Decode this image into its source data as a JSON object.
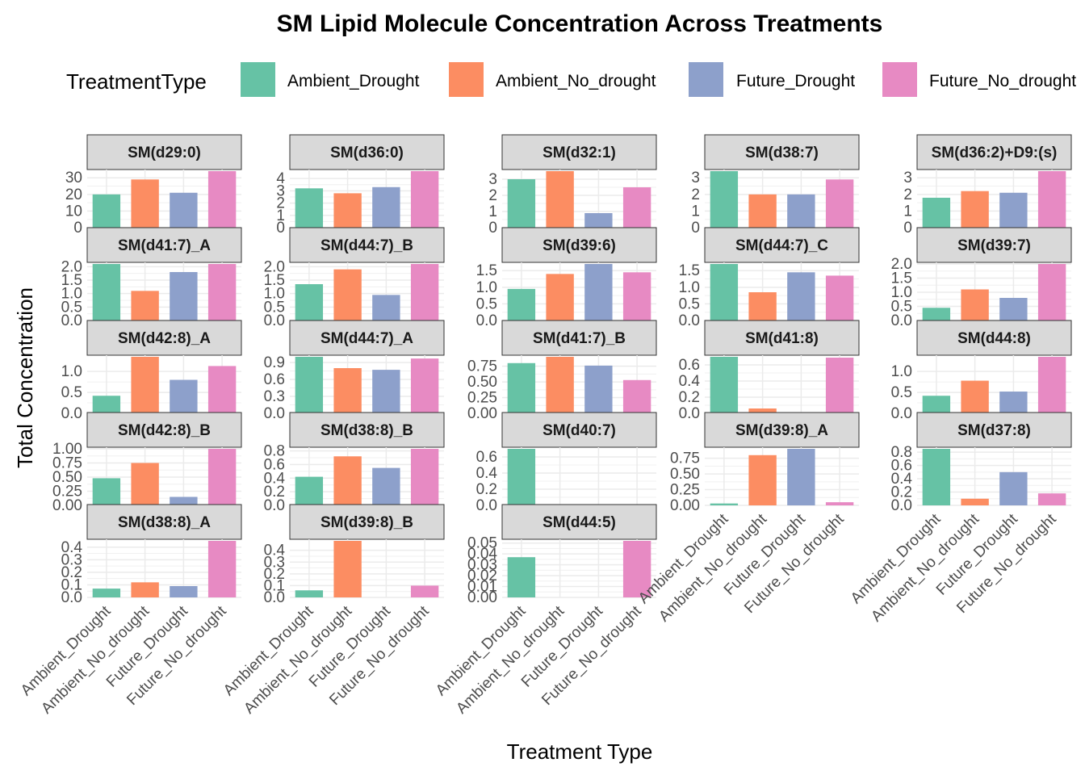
{
  "chart_data": {
    "type": "bar",
    "title": "SM  Lipid Molecule Concentration Across Treatments",
    "xlabel": "Treatment Type",
    "ylabel": "Total Concentration",
    "legend": {
      "title": "TreatmentType",
      "position": "top",
      "entries": [
        "Ambient_Drought",
        "Ambient_No_drought",
        "Future_Drought",
        "Future_No_drought"
      ],
      "colors": [
        "#66C2A5",
        "#FC8D62",
        "#8DA0CB",
        "#E78AC3"
      ]
    },
    "categories": [
      "Ambient_Drought",
      "Ambient_No_drought",
      "Future_Drought",
      "Future_No_drought"
    ],
    "grid": true,
    "facets": [
      {
        "label": "SM(d29:0)",
        "values": [
          20,
          29,
          21,
          34
        ],
        "ticks": [
          "0",
          "10",
          "20",
          "30"
        ],
        "ylim": [
          0,
          34
        ]
      },
      {
        "label": "SM(d36:0)",
        "values": [
          3.2,
          2.8,
          3.3,
          4.6
        ],
        "ticks": [
          "0",
          "1",
          "2",
          "3",
          "4"
        ],
        "ylim": [
          0,
          4.6
        ]
      },
      {
        "label": "SM(d32:1)",
        "values": [
          3.0,
          3.5,
          0.9,
          2.5
        ],
        "ticks": [
          "0",
          "1",
          "2",
          "3"
        ],
        "ylim": [
          0,
          3.5
        ]
      },
      {
        "label": "SM(d38:7)",
        "values": [
          3.4,
          2.0,
          2.0,
          2.9
        ],
        "ticks": [
          "0",
          "1",
          "2",
          "3"
        ],
        "ylim": [
          0,
          3.4
        ]
      },
      {
        "label": "SM(d36:2)+D9:(s)",
        "values": [
          1.8,
          2.2,
          2.1,
          3.4
        ],
        "ticks": [
          "0",
          "1",
          "2",
          "3"
        ],
        "ylim": [
          0,
          3.4
        ]
      },
      {
        "label": "SM(d41:7)_A",
        "values": [
          2.1,
          1.1,
          1.8,
          2.1
        ],
        "ticks": [
          "0.0",
          "0.5",
          "1.0",
          "1.5",
          "2.0"
        ],
        "ylim": [
          0,
          2.1
        ]
      },
      {
        "label": "SM(d44:7)_B",
        "values": [
          1.35,
          1.9,
          0.95,
          2.1
        ],
        "ticks": [
          "0.0",
          "0.5",
          "1.0",
          "1.5",
          "2.0"
        ],
        "ylim": [
          0,
          2.1
        ]
      },
      {
        "label": "SM(d39:6)",
        "values": [
          0.95,
          1.4,
          1.7,
          1.45
        ],
        "ticks": [
          "0.0",
          "0.5",
          "1.0",
          "1.5"
        ],
        "ylim": [
          0,
          1.7
        ]
      },
      {
        "label": "SM(d44:7)_C",
        "values": [
          1.7,
          0.85,
          1.45,
          1.35
        ],
        "ticks": [
          "0.0",
          "0.5",
          "1.0",
          "1.5"
        ],
        "ylim": [
          0,
          1.7
        ]
      },
      {
        "label": "SM(d39:7)",
        "values": [
          0.45,
          1.1,
          0.8,
          2.0
        ],
        "ticks": [
          "0.0",
          "0.5",
          "1.0",
          "1.5",
          "2.0"
        ],
        "ylim": [
          0,
          2.0
        ]
      },
      {
        "label": "SM(d42:8)_A",
        "values": [
          0.42,
          1.35,
          0.8,
          1.13
        ],
        "ticks": [
          "0.0",
          "0.5",
          "1.0"
        ],
        "ylim": [
          0,
          1.35
        ]
      },
      {
        "label": "SM(d44:7)_A",
        "values": [
          1.0,
          0.8,
          0.77,
          0.97
        ],
        "ticks": [
          "0.0",
          "0.3",
          "0.6",
          "0.9"
        ],
        "ylim": [
          0,
          1.0
        ]
      },
      {
        "label": "SM(d41:7)_B",
        "values": [
          0.8,
          0.9,
          0.76,
          0.53
        ],
        "ticks": [
          "0.00",
          "0.25",
          "0.50",
          "0.75"
        ],
        "ylim": [
          0,
          0.9
        ]
      },
      {
        "label": "SM(d41:8)",
        "values": [
          0.7,
          0.06,
          0.0,
          0.69
        ],
        "ticks": [
          "0.0",
          "0.2",
          "0.4",
          "0.6"
        ],
        "ylim": [
          0,
          0.7
        ]
      },
      {
        "label": "SM(d44:8)",
        "values": [
          0.42,
          0.78,
          0.52,
          1.35
        ],
        "ticks": [
          "0.0",
          "0.5",
          "1.0"
        ],
        "ylim": [
          0,
          1.35
        ]
      },
      {
        "label": "SM(d42:8)_B",
        "values": [
          0.48,
          0.75,
          0.15,
          1.0
        ],
        "ticks": [
          "0.00",
          "0.25",
          "0.50",
          "0.75",
          "1.00"
        ],
        "ylim": [
          0,
          1.0
        ]
      },
      {
        "label": "SM(d38:8)_B",
        "values": [
          0.42,
          0.72,
          0.55,
          0.83
        ],
        "ticks": [
          "0.0",
          "0.2",
          "0.4",
          "0.6",
          "0.8"
        ],
        "ylim": [
          0,
          0.83
        ]
      },
      {
        "label": "SM(d40:7)",
        "values": [
          0.7,
          0.0,
          0.0,
          0.0
        ],
        "ticks": [
          "0.0",
          "0.2",
          "0.4",
          "0.6"
        ],
        "ylim": [
          0,
          0.7
        ]
      },
      {
        "label": "SM(d39:8)_A",
        "values": [
          0.03,
          0.8,
          0.9,
          0.05
        ],
        "ticks": [
          "0.00",
          "0.25",
          "0.50",
          "0.75"
        ],
        "ylim": [
          0,
          0.9
        ]
      },
      {
        "label": "SM(d37:8)",
        "values": [
          0.85,
          0.1,
          0.5,
          0.18
        ],
        "ticks": [
          "0.0",
          "0.2",
          "0.4",
          "0.6",
          "0.8"
        ],
        "ylim": [
          0,
          0.85
        ]
      },
      {
        "label": "SM(d38:8)_A",
        "values": [
          0.07,
          0.12,
          0.09,
          0.45
        ],
        "ticks": [
          "0.0",
          "0.1",
          "0.2",
          "0.3",
          "0.4"
        ],
        "ylim": [
          0,
          0.45
        ]
      },
      {
        "label": "SM(d39:8)_B",
        "values": [
          0.06,
          0.48,
          0.0,
          0.1
        ],
        "ticks": [
          "0.0",
          "0.1",
          "0.2",
          "0.3",
          "0.4"
        ],
        "ylim": [
          0,
          0.48
        ]
      },
      {
        "label": "SM(d44:5)",
        "values": [
          0.037,
          0.0,
          0.0,
          0.052
        ],
        "ticks": [
          "0.00",
          "0.01",
          "0.02",
          "0.03",
          "0.04",
          "0.05"
        ],
        "ylim": [
          0,
          0.052
        ]
      }
    ]
  }
}
